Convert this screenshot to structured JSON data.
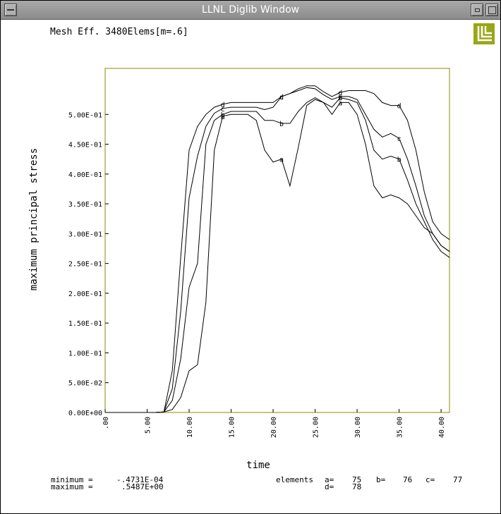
{
  "window": {
    "title": "LLNL Diglib Window"
  },
  "icons": {
    "window_menu": "window-menu-icon",
    "minimize": "minimize-icon",
    "maximize": "maximize-icon",
    "logo": "llnl-logo-icon"
  },
  "colors": {
    "axis": "#8b8b00",
    "line": "#000000",
    "logo": "#9aa617",
    "titlebar": "#9c9c9c"
  },
  "chart_data": {
    "type": "line",
    "title": "Mesh Eff. 3480Elems[m=.6]",
    "xlabel": "time",
    "ylabel": "maximum principal stress",
    "xlim": [
      0,
      41
    ],
    "ylim": [
      0,
      0.55
    ],
    "x_ticks": [
      ".00",
      "5.00",
      "10.00",
      "15.00",
      "20.00",
      "25.00",
      "30.00",
      "35.00",
      "40.00"
    ],
    "y_ticks": [
      "0.00E+00",
      "5.00E-02",
      "1.00E-01",
      "1.50E-01",
      "2.00E-01",
      "2.50E-01",
      "3.00E-01",
      "3.50E-01",
      "4.00E-01",
      "4.50E-01",
      "5.00E-01"
    ],
    "series": [
      {
        "name": "a",
        "x": [
          0,
          6,
          7,
          8,
          9,
          10,
          11,
          12,
          13,
          14,
          15,
          16,
          17,
          18,
          19,
          20,
          21,
          22,
          23,
          24,
          25,
          26,
          27,
          28,
          29,
          30,
          31,
          32,
          33,
          34,
          35,
          36,
          37,
          38,
          39,
          40,
          41
        ],
        "values": [
          0,
          0,
          0.001,
          0.005,
          0.025,
          0.07,
          0.08,
          0.185,
          0.44,
          0.497,
          0.5,
          0.5,
          0.5,
          0.49,
          0.44,
          0.42,
          0.425,
          0.38,
          0.445,
          0.515,
          0.525,
          0.52,
          0.5,
          0.52,
          0.52,
          0.5,
          0.45,
          0.38,
          0.36,
          0.365,
          0.36,
          0.35,
          0.33,
          0.31,
          0.3,
          0.28,
          0.27
        ]
      },
      {
        "name": "b",
        "x": [
          0,
          6,
          7,
          8,
          9,
          10,
          11,
          12,
          13,
          14,
          15,
          16,
          17,
          18,
          19,
          20,
          21,
          22,
          23,
          24,
          25,
          26,
          27,
          28,
          29,
          30,
          31,
          32,
          33,
          34,
          35,
          36,
          37,
          38,
          39,
          40,
          41
        ],
        "values": [
          0,
          0,
          0.001,
          0.02,
          0.09,
          0.21,
          0.25,
          0.45,
          0.49,
          0.5,
          0.505,
          0.505,
          0.505,
          0.505,
          0.49,
          0.49,
          0.485,
          0.485,
          0.505,
          0.52,
          0.528,
          0.52,
          0.512,
          0.528,
          0.525,
          0.52,
          0.49,
          0.44,
          0.425,
          0.43,
          0.425,
          0.39,
          0.35,
          0.32,
          0.29,
          0.27,
          0.26
        ]
      },
      {
        "name": "c",
        "x": [
          0,
          6,
          7,
          8,
          9,
          10,
          11,
          12,
          13,
          14,
          15,
          16,
          17,
          18,
          19,
          20,
          21,
          22,
          23,
          24,
          25,
          26,
          27,
          28,
          29,
          30,
          31,
          32,
          33,
          34,
          35,
          36,
          37,
          38,
          39,
          40,
          41
        ],
        "values": [
          0,
          0,
          0.001,
          0.04,
          0.17,
          0.36,
          0.43,
          0.48,
          0.502,
          0.51,
          0.512,
          0.512,
          0.512,
          0.512,
          0.508,
          0.512,
          0.53,
          0.535,
          0.54,
          0.545,
          0.543,
          0.533,
          0.525,
          0.53,
          0.53,
          0.525,
          0.5,
          0.475,
          0.462,
          0.468,
          0.46,
          0.425,
          0.38,
          0.33,
          0.3,
          0.28,
          0.27
        ]
      },
      {
        "name": "d",
        "x": [
          0,
          6,
          7,
          8,
          9,
          10,
          11,
          12,
          13,
          14,
          15,
          16,
          17,
          18,
          19,
          20,
          21,
          22,
          23,
          24,
          25,
          26,
          27,
          28,
          29,
          30,
          31,
          32,
          33,
          34,
          35,
          36,
          37,
          38,
          39,
          40,
          41
        ],
        "values": [
          0,
          0,
          0.001,
          0.07,
          0.26,
          0.44,
          0.48,
          0.5,
          0.512,
          0.517,
          0.52,
          0.52,
          0.52,
          0.52,
          0.52,
          0.52,
          0.53,
          0.535,
          0.543,
          0.548,
          0.548,
          0.538,
          0.53,
          0.537,
          0.54,
          0.54,
          0.54,
          0.535,
          0.52,
          0.515,
          0.515,
          0.49,
          0.44,
          0.37,
          0.32,
          0.3,
          0.29
        ]
      }
    ],
    "curve_labels": [
      {
        "series": "a",
        "x": [
          14,
          21,
          28
        ]
      },
      {
        "series": "b",
        "x": [
          14,
          21,
          28,
          35
        ]
      },
      {
        "series": "c",
        "x": [
          14,
          21,
          28,
          35
        ]
      },
      {
        "series": "d",
        "x": [
          14,
          21,
          28,
          35
        ]
      }
    ],
    "footer": {
      "minimum_label": "minimum =",
      "minimum_value": "-.4731E-04",
      "maximum_label": "maximum =",
      "maximum_value": ".5487E+00",
      "elements_label": "elements",
      "elements": [
        {
          "key": "a=",
          "value": "75"
        },
        {
          "key": "b=",
          "value": "76"
        },
        {
          "key": "c=",
          "value": "77"
        },
        {
          "key": "d=",
          "value": "78"
        }
      ]
    }
  }
}
